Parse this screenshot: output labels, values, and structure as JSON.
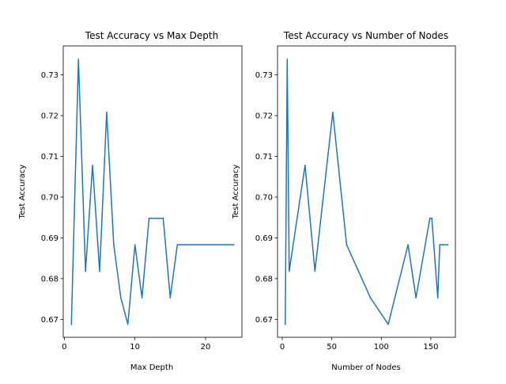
{
  "chart_data": [
    {
      "type": "line",
      "title": "Test Accuracy vs Max Depth",
      "xlabel": "Max Depth",
      "ylabel": "Test Accuracy",
      "xlim": [
        -0.15,
        25.15
      ],
      "ylim": [
        0.6656,
        0.7371
      ],
      "xticks": [
        0,
        10,
        20
      ],
      "xtick_labels": [
        "0",
        "10",
        "20"
      ],
      "yticks": [
        0.67,
        0.68,
        0.69,
        0.7,
        0.71,
        0.72,
        0.73
      ],
      "ytick_labels": [
        "0.67",
        "0.68",
        "0.69",
        "0.70",
        "0.71",
        "0.72",
        "0.73"
      ],
      "grid": false,
      "color": "#1f77b4",
      "series": [
        {
          "x": [
            1,
            2,
            3,
            4,
            5,
            6,
            7,
            8,
            9,
            10,
            11,
            12,
            13,
            14,
            15,
            16,
            17,
            18,
            19,
            20,
            21,
            22,
            23,
            24
          ],
          "values": [
            0.6688,
            0.7338,
            0.6818,
            0.7078,
            0.6818,
            0.7208,
            0.6883,
            0.6753,
            0.6688,
            0.6883,
            0.6753,
            0.6948,
            0.6948,
            0.6948,
            0.6753,
            0.6883,
            0.6883,
            0.6883,
            0.6883,
            0.6883,
            0.6883,
            0.6883,
            0.6883,
            0.6883
          ]
        }
      ]
    },
    {
      "type": "line",
      "title": "Test Accuracy vs Number of Nodes",
      "xlabel": "Number of Nodes",
      "ylabel": "Test Accuracy",
      "xlim": [
        -4.8,
        174.8
      ],
      "ylim": [
        0.6656,
        0.7371
      ],
      "xticks": [
        0,
        50,
        100,
        150
      ],
      "xtick_labels": [
        "0",
        "50",
        "100",
        "150"
      ],
      "yticks": [
        0.67,
        0.68,
        0.69,
        0.7,
        0.71,
        0.72,
        0.73
      ],
      "ytick_labels": [
        "0.67",
        "0.68",
        "0.69",
        "0.70",
        "0.71",
        "0.72",
        "0.73"
      ],
      "grid": false,
      "color": "#1f77b4",
      "series": [
        {
          "x": [
            3,
            5,
            7,
            23,
            33,
            51,
            65,
            89,
            107,
            127,
            135,
            149,
            151,
            157,
            159,
            167
          ],
          "values": [
            0.6688,
            0.7338,
            0.6818,
            0.7078,
            0.6818,
            0.7208,
            0.6883,
            0.6753,
            0.6688,
            0.6883,
            0.6753,
            0.6948,
            0.6948,
            0.6753,
            0.6883,
            0.6883
          ]
        }
      ]
    }
  ]
}
